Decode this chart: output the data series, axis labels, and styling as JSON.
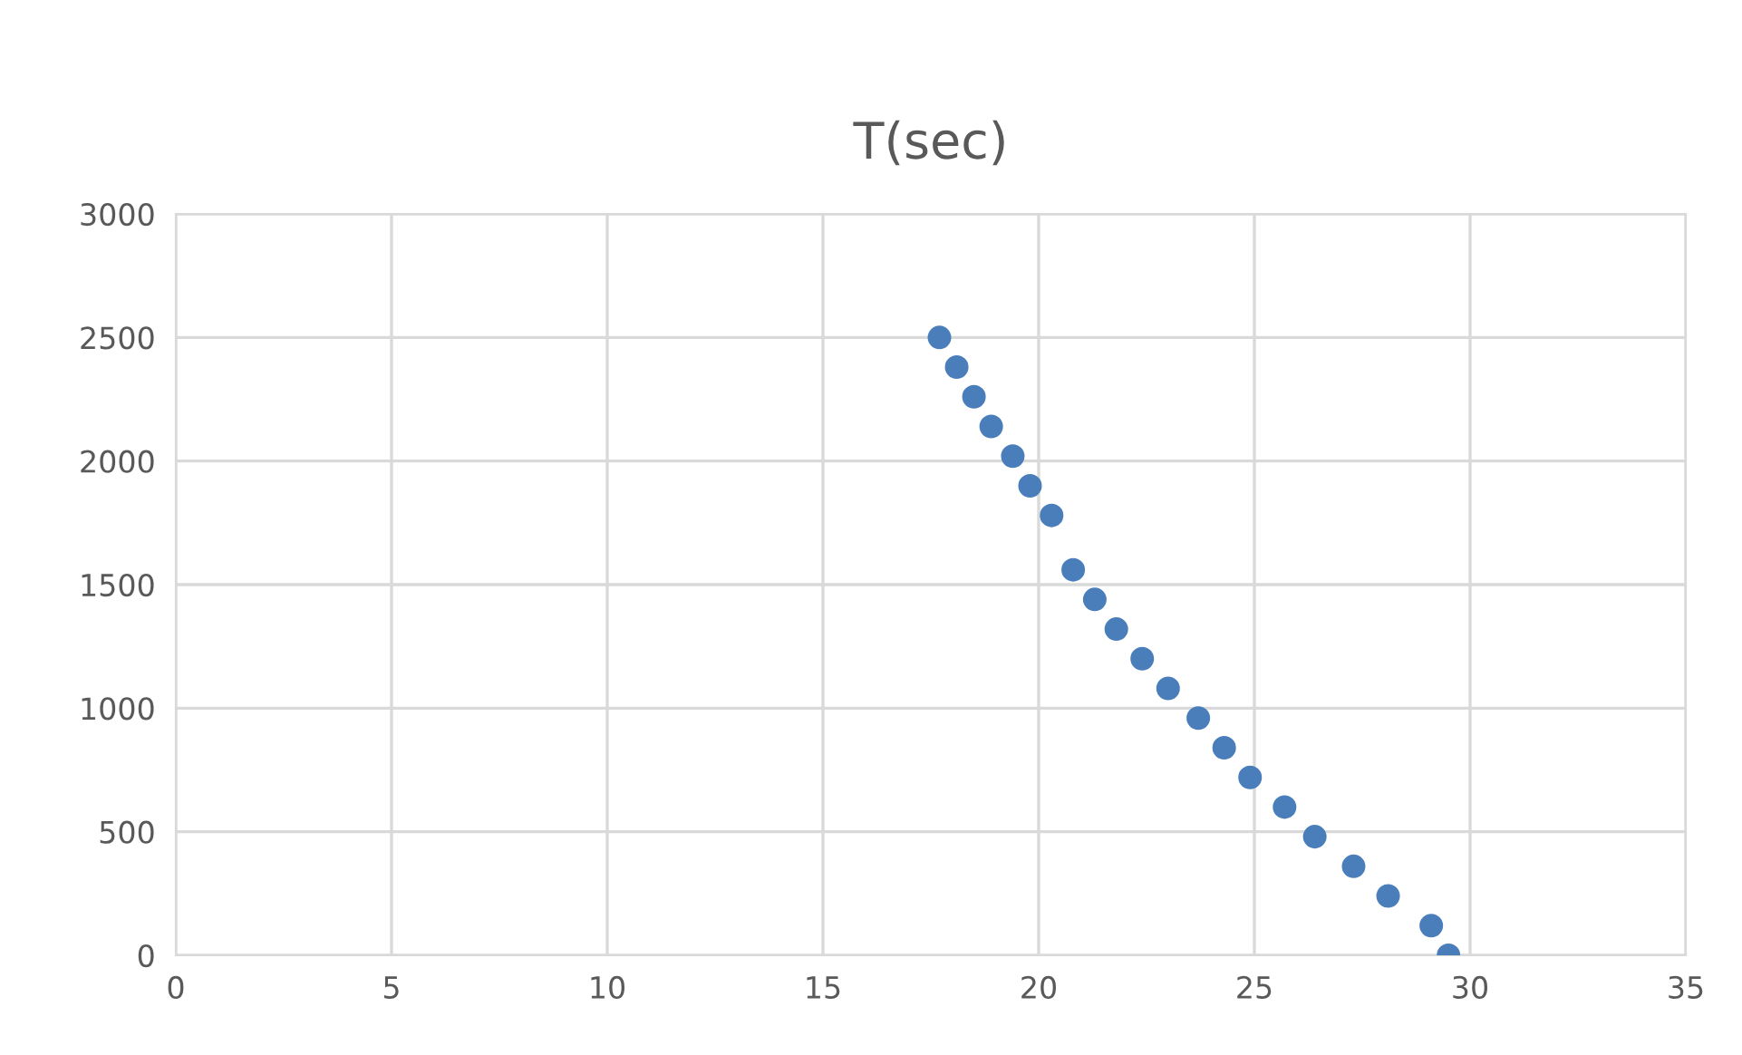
{
  "chart_data": {
    "type": "scatter",
    "title": "T(sec)",
    "x": [
      17.7,
      18.1,
      18.5,
      18.9,
      19.4,
      19.8,
      20.3,
      20.8,
      21.3,
      21.8,
      22.4,
      23.0,
      23.7,
      24.3,
      24.9,
      25.7,
      26.4,
      27.3,
      28.1,
      29.1,
      29.5
    ],
    "series": [
      {
        "color": "#4a7ebb",
        "values": [
          2500,
          2380,
          2260,
          2140,
          2020,
          1900,
          1780,
          1560,
          1440,
          1320,
          1200,
          1080,
          960,
          840,
          720,
          600,
          480,
          360,
          240,
          120,
          0
        ]
      }
    ],
    "xlim": [
      0,
      35
    ],
    "xticks": [
      0,
      5,
      10,
      15,
      20,
      25,
      30,
      35
    ],
    "ylim": [
      0,
      3000
    ],
    "yticks": [
      0,
      500,
      1000,
      1500,
      2000,
      2500,
      3000
    ],
    "grid": true,
    "marker": "circle"
  }
}
